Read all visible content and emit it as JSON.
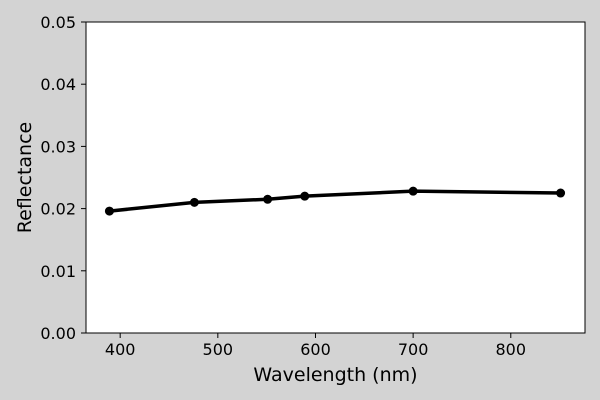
{
  "chart_data": {
    "type": "line",
    "xlabel": "Wavelength (nm)",
    "ylabel": "Reflectance",
    "xlim": [
      365,
      876
    ],
    "ylim": [
      0,
      0.05
    ],
    "xticks": [
      400,
      500,
      600,
      700,
      800
    ],
    "yticks": [
      0.0,
      0.01,
      0.02,
      0.03,
      0.04,
      0.05
    ],
    "xtick_labels": [
      "400",
      "500",
      "600",
      "700",
      "800"
    ],
    "ytick_labels": [
      "0.00",
      "0.01",
      "0.02",
      "0.03",
      "0.04",
      "0.05"
    ],
    "grid": false,
    "series": [
      {
        "color": "#000000",
        "marker": "circle",
        "x": [
          389,
          476,
          551,
          589,
          700,
          851
        ],
        "y": [
          0.0196,
          0.021,
          0.0215,
          0.022,
          0.0228,
          0.0225
        ]
      }
    ]
  }
}
